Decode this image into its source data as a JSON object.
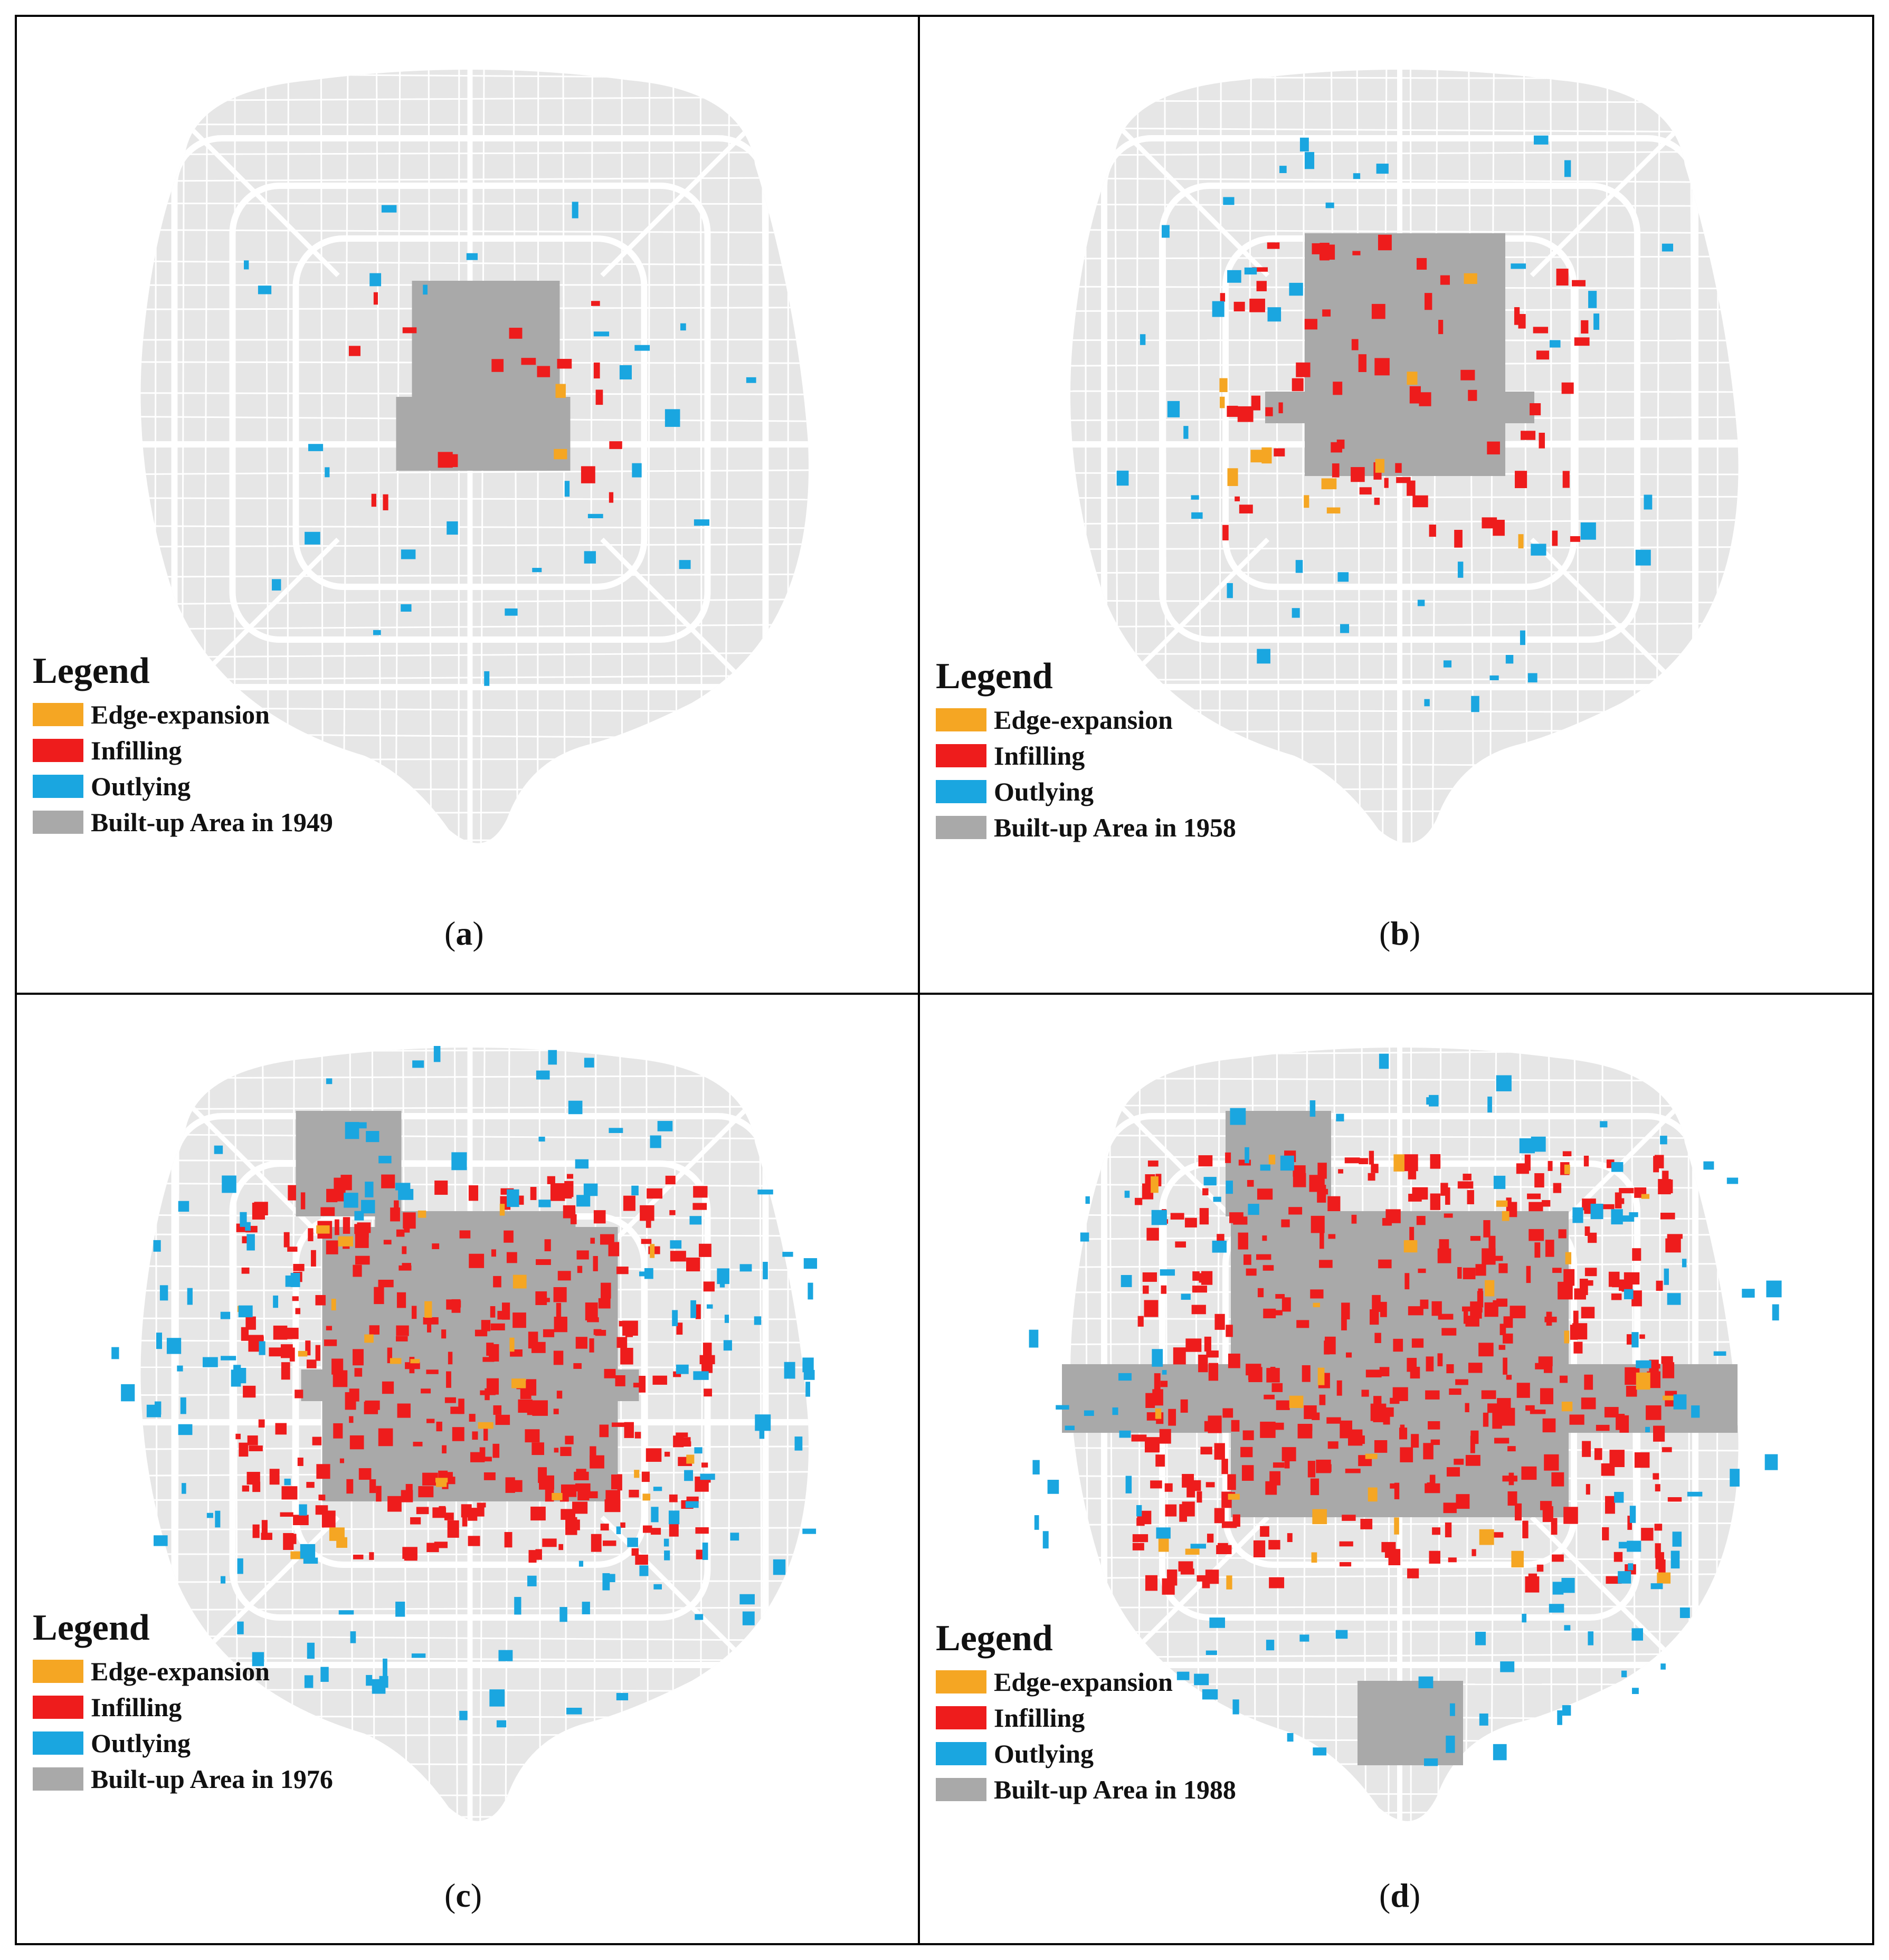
{
  "colors": {
    "edge_expansion": "#f5a623",
    "infilling": "#ee1c1c",
    "outlying": "#1aa6e0",
    "built_up": "#a9a9a9",
    "map_base": "#e6e6e6",
    "roads": "#ffffff"
  },
  "panels": [
    {
      "caption_open": "(",
      "caption_letter": "a",
      "caption_close": ")",
      "legend": {
        "title": "Legend",
        "items": [
          "Edge-expansion",
          "Infilling",
          "Outlying",
          "Built-up Area in 1949"
        ]
      },
      "growth_level": 0
    },
    {
      "caption_open": "(",
      "caption_letter": "b",
      "caption_close": ")",
      "legend": {
        "title": "Legend",
        "items": [
          "Edge-expansion",
          "Infilling",
          "Outlying",
          "Built-up Area in 1958"
        ]
      },
      "growth_level": 1
    },
    {
      "caption_open": "(",
      "caption_letter": "c",
      "caption_close": ")",
      "legend": {
        "title": "Legend",
        "items": [
          "Edge-expansion",
          "Infilling",
          "Outlying",
          "Built-up Area in 1976"
        ]
      },
      "growth_level": 2
    },
    {
      "caption_open": "(",
      "caption_letter": "d",
      "caption_close": ")",
      "legend": {
        "title": "Legend",
        "items": [
          "Edge-expansion",
          "Infilling",
          "Outlying",
          "Built-up Area in 1988"
        ]
      },
      "growth_level": 3
    }
  ]
}
